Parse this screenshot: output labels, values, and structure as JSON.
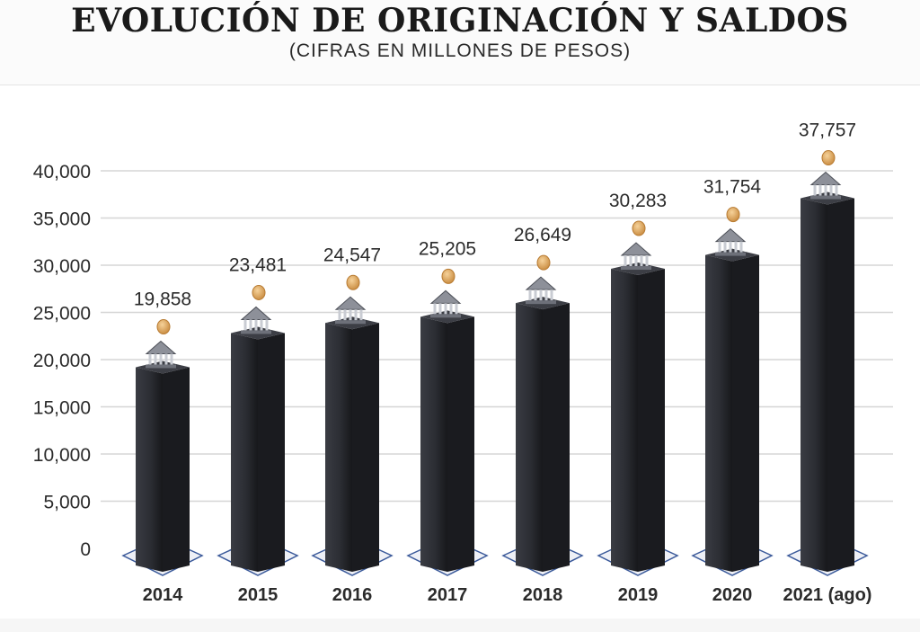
{
  "header": {
    "title": "EVOLUCIÓN DE ORIGINACIÓN Y SALDOS",
    "subtitle": "(CIFRAS EN MILLONES DE PESOS)"
  },
  "chart_data": {
    "type": "bar",
    "categories": [
      "2014",
      "2015",
      "2016",
      "2017",
      "2018",
      "2019",
      "2020",
      "2021 (ago)"
    ],
    "values": [
      19858,
      23481,
      24547,
      25205,
      26649,
      30283,
      31754,
      37757
    ],
    "value_labels": [
      "19,858",
      "23,481",
      "24,547",
      "25,205",
      "26,649",
      "30,283",
      "31,754",
      "37,757"
    ],
    "yticks": [
      "0",
      "5,000",
      "10,000",
      "15,000",
      "20,000",
      "25,000",
      "30,000",
      "35,000",
      "40,000"
    ],
    "ylim": [
      0,
      40000
    ],
    "grid": true,
    "colors": {
      "bar_front": "#2b2d33",
      "bar_side": "#1a1b1f",
      "bar_top": "#3c3e45",
      "grid": "#d6d6d6",
      "base_outline": "#3b5a9a",
      "coin": "#d9a35a",
      "bank_icon": "#6d7079"
    },
    "icons": [
      "bank-icon",
      "coin-icon"
    ]
  }
}
